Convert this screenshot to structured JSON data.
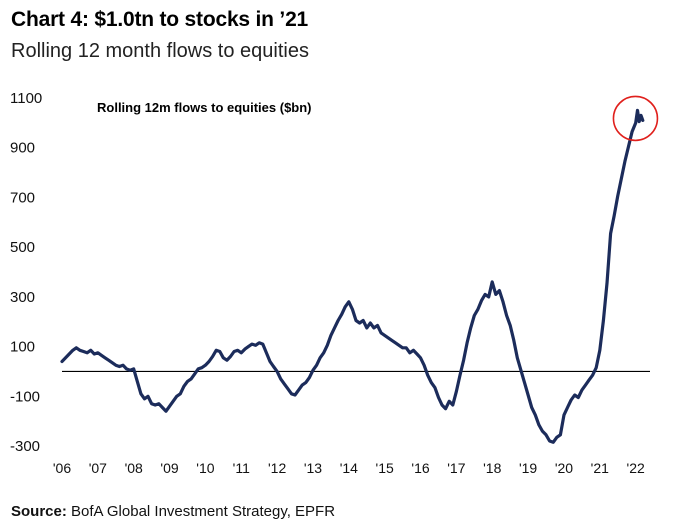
{
  "header": {
    "title": "Chart 4: $1.0tn to stocks in ’21",
    "subtitle": "Rolling 12 month flows to equities"
  },
  "footer": {
    "source_label": "Source:",
    "source_text": "BofA Global Investment Strategy, EPFR"
  },
  "chart_data": {
    "type": "line",
    "title": "Chart 4: $1.0tn to stocks in ’21",
    "subtitle": "Rolling 12 month flows to equities",
    "annotation": "Rolling 12m flows to equities ($bn)",
    "xlabel": "",
    "ylabel": "",
    "xlim": [
      2006.0,
      2022.4
    ],
    "ylim": [
      -300,
      1100
    ],
    "yticks": [
      1100,
      900,
      700,
      500,
      300,
      100,
      -100,
      -300
    ],
    "xticks": [
      {
        "label": "'06",
        "year": 2006
      },
      {
        "label": "'07",
        "year": 2007
      },
      {
        "label": "'08",
        "year": 2008
      },
      {
        "label": "'09",
        "year": 2009
      },
      {
        "label": "'10",
        "year": 2010
      },
      {
        "label": "'11",
        "year": 2011
      },
      {
        "label": "'12",
        "year": 2012
      },
      {
        "label": "'13",
        "year": 2013
      },
      {
        "label": "'14",
        "year": 2014
      },
      {
        "label": "'15",
        "year": 2015
      },
      {
        "label": "'16",
        "year": 2016
      },
      {
        "label": "'17",
        "year": 2017
      },
      {
        "label": "'18",
        "year": 2018
      },
      {
        "label": "'19",
        "year": 2019
      },
      {
        "label": "'20",
        "year": 2020
      },
      {
        "label": "'21",
        "year": 2021
      },
      {
        "label": "'22",
        "year": 2022
      }
    ],
    "zero_line": 0,
    "grid": false,
    "line_color": "#1c2c5b",
    "highlight_circle_color": "#e0201c",
    "series": [
      {
        "values": [
          [
            2006.0,
            40
          ],
          [
            2006.1,
            55
          ],
          [
            2006.2,
            70
          ],
          [
            2006.3,
            85
          ],
          [
            2006.4,
            95
          ],
          [
            2006.5,
            85
          ],
          [
            2006.6,
            80
          ],
          [
            2006.7,
            75
          ],
          [
            2006.8,
            85
          ],
          [
            2006.9,
            70
          ],
          [
            2007.0,
            75
          ],
          [
            2007.1,
            65
          ],
          [
            2007.2,
            55
          ],
          [
            2007.3,
            45
          ],
          [
            2007.4,
            35
          ],
          [
            2007.5,
            25
          ],
          [
            2007.6,
            20
          ],
          [
            2007.7,
            25
          ],
          [
            2007.8,
            10
          ],
          [
            2007.9,
            5
          ],
          [
            2008.0,
            10
          ],
          [
            2008.1,
            -40
          ],
          [
            2008.2,
            -90
          ],
          [
            2008.3,
            -110
          ],
          [
            2008.4,
            -100
          ],
          [
            2008.5,
            -130
          ],
          [
            2008.6,
            -135
          ],
          [
            2008.7,
            -130
          ],
          [
            2008.8,
            -145
          ],
          [
            2008.9,
            -160
          ],
          [
            2009.0,
            -140
          ],
          [
            2009.1,
            -120
          ],
          [
            2009.2,
            -100
          ],
          [
            2009.3,
            -90
          ],
          [
            2009.4,
            -60
          ],
          [
            2009.5,
            -40
          ],
          [
            2009.6,
            -30
          ],
          [
            2009.7,
            -10
          ],
          [
            2009.8,
            10
          ],
          [
            2009.9,
            15
          ],
          [
            2010.0,
            25
          ],
          [
            2010.1,
            40
          ],
          [
            2010.2,
            60
          ],
          [
            2010.3,
            85
          ],
          [
            2010.4,
            80
          ],
          [
            2010.5,
            55
          ],
          [
            2010.6,
            45
          ],
          [
            2010.7,
            60
          ],
          [
            2010.8,
            80
          ],
          [
            2010.9,
            85
          ],
          [
            2011.0,
            75
          ],
          [
            2011.1,
            90
          ],
          [
            2011.2,
            100
          ],
          [
            2011.3,
            110
          ],
          [
            2011.4,
            105
          ],
          [
            2011.5,
            115
          ],
          [
            2011.6,
            110
          ],
          [
            2011.7,
            75
          ],
          [
            2011.8,
            40
          ],
          [
            2011.9,
            20
          ],
          [
            2012.0,
            0
          ],
          [
            2012.1,
            -30
          ],
          [
            2012.2,
            -50
          ],
          [
            2012.3,
            -70
          ],
          [
            2012.4,
            -90
          ],
          [
            2012.5,
            -95
          ],
          [
            2012.6,
            -75
          ],
          [
            2012.7,
            -55
          ],
          [
            2012.8,
            -45
          ],
          [
            2012.9,
            -25
          ],
          [
            2013.0,
            5
          ],
          [
            2013.1,
            25
          ],
          [
            2013.2,
            55
          ],
          [
            2013.3,
            75
          ],
          [
            2013.4,
            105
          ],
          [
            2013.5,
            145
          ],
          [
            2013.6,
            175
          ],
          [
            2013.7,
            205
          ],
          [
            2013.8,
            230
          ],
          [
            2013.9,
            260
          ],
          [
            2014.0,
            280
          ],
          [
            2014.1,
            250
          ],
          [
            2014.2,
            205
          ],
          [
            2014.3,
            195
          ],
          [
            2014.4,
            205
          ],
          [
            2014.5,
            175
          ],
          [
            2014.6,
            195
          ],
          [
            2014.7,
            175
          ],
          [
            2014.8,
            185
          ],
          [
            2014.9,
            155
          ],
          [
            2015.0,
            145
          ],
          [
            2015.1,
            135
          ],
          [
            2015.2,
            125
          ],
          [
            2015.3,
            115
          ],
          [
            2015.4,
            105
          ],
          [
            2015.5,
            95
          ],
          [
            2015.6,
            95
          ],
          [
            2015.7,
            75
          ],
          [
            2015.8,
            85
          ],
          [
            2015.9,
            70
          ],
          [
            2016.0,
            55
          ],
          [
            2016.1,
            25
          ],
          [
            2016.2,
            -15
          ],
          [
            2016.3,
            -45
          ],
          [
            2016.4,
            -65
          ],
          [
            2016.5,
            -105
          ],
          [
            2016.6,
            -135
          ],
          [
            2016.7,
            -150
          ],
          [
            2016.8,
            -120
          ],
          [
            2016.9,
            -135
          ],
          [
            2017.0,
            -80
          ],
          [
            2017.1,
            -15
          ],
          [
            2017.2,
            45
          ],
          [
            2017.3,
            115
          ],
          [
            2017.4,
            175
          ],
          [
            2017.5,
            225
          ],
          [
            2017.6,
            250
          ],
          [
            2017.7,
            285
          ],
          [
            2017.8,
            310
          ],
          [
            2017.9,
            300
          ],
          [
            2018.0,
            360
          ],
          [
            2018.1,
            310
          ],
          [
            2018.2,
            325
          ],
          [
            2018.3,
            280
          ],
          [
            2018.4,
            225
          ],
          [
            2018.5,
            185
          ],
          [
            2018.6,
            125
          ],
          [
            2018.7,
            55
          ],
          [
            2018.8,
            5
          ],
          [
            2018.9,
            -45
          ],
          [
            2019.0,
            -95
          ],
          [
            2019.1,
            -145
          ],
          [
            2019.2,
            -175
          ],
          [
            2019.3,
            -215
          ],
          [
            2019.4,
            -240
          ],
          [
            2019.5,
            -255
          ],
          [
            2019.6,
            -280
          ],
          [
            2019.7,
            -285
          ],
          [
            2019.8,
            -265
          ],
          [
            2019.9,
            -255
          ],
          [
            2020.0,
            -175
          ],
          [
            2020.1,
            -145
          ],
          [
            2020.2,
            -115
          ],
          [
            2020.3,
            -95
          ],
          [
            2020.4,
            -105
          ],
          [
            2020.5,
            -75
          ],
          [
            2020.6,
            -55
          ],
          [
            2020.7,
            -35
          ],
          [
            2020.8,
            -15
          ],
          [
            2020.9,
            15
          ],
          [
            2021.0,
            85
          ],
          [
            2021.1,
            205
          ],
          [
            2021.2,
            355
          ],
          [
            2021.3,
            555
          ],
          [
            2021.4,
            625
          ],
          [
            2021.5,
            705
          ],
          [
            2021.6,
            775
          ],
          [
            2021.7,
            845
          ],
          [
            2021.8,
            905
          ],
          [
            2021.9,
            965
          ],
          [
            2022.0,
            1000
          ],
          [
            2022.05,
            1050
          ],
          [
            2022.1,
            1005
          ],
          [
            2022.15,
            1030
          ],
          [
            2022.2,
            1010
          ]
        ]
      }
    ]
  }
}
